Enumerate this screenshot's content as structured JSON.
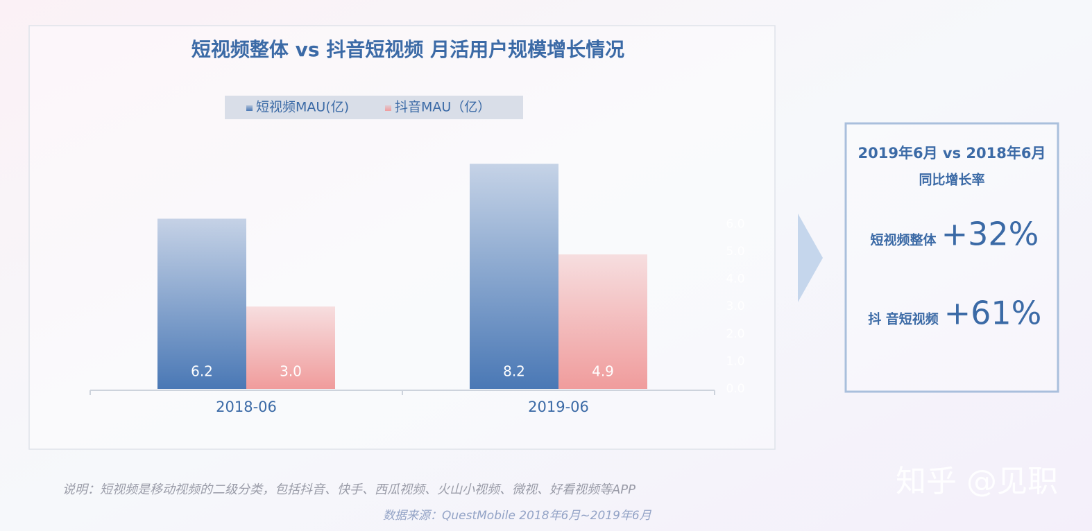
{
  "chart_data": {
    "type": "bar",
    "title": "短视频整体 vs 抖音短视频 月活用户规模增长情况",
    "categories": [
      "2018-06",
      "2019-06"
    ],
    "series": [
      {
        "name": "短视频MAU(亿)",
        "color": "#4a78b5",
        "values": [
          6.2,
          8.2
        ],
        "value_labels": [
          "6.2",
          "8.2"
        ]
      },
      {
        "name": "抖音MAU（亿）",
        "color": "#f09c9c",
        "values": [
          3.0,
          4.9
        ],
        "value_labels": [
          "3.0",
          "4.9"
        ]
      }
    ],
    "ylim": [
      0,
      10
    ],
    "yticks": [
      {
        "value": 0,
        "label": "0.0"
      },
      {
        "value": 1,
        "label": "1.0"
      },
      {
        "value": 2,
        "label": "2.0"
      },
      {
        "value": 3,
        "label": "3.0"
      },
      {
        "value": 4,
        "label": "4.0"
      },
      {
        "value": 5,
        "label": "5.0"
      },
      {
        "value": 6,
        "label": "6.0"
      }
    ],
    "legend": "top"
  },
  "panel": {
    "title_line1": "2019年6月 vs 2018年6月",
    "title_line2": "同比增长率",
    "rows": [
      {
        "label": "短视频整体",
        "value": "+32%"
      },
      {
        "label": "抖 音短视频",
        "value": "+61%"
      }
    ]
  },
  "note": "说明：短视频是移动视频的二级分类，包括抖音、快手、西瓜视频、火山小视频、微视、好看视频等APP",
  "source": "数据来源：QuestMobile 2018年6月~2019年6月",
  "watermark": "知乎 @见职"
}
